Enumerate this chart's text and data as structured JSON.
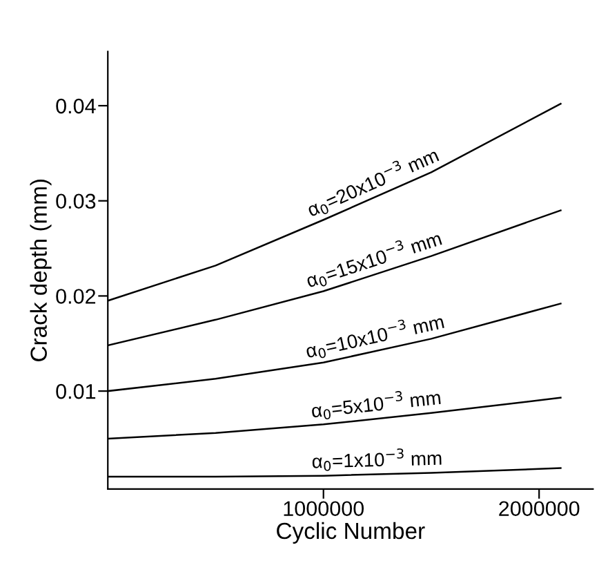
{
  "chart_data": {
    "type": "line",
    "xlabel": "Cyclic Number",
    "ylabel": "Crack depth (mm)",
    "x": [
      0,
      500000,
      1000000,
      1500000,
      2100000
    ],
    "series": [
      {
        "name": "α$_{0}$=20x10$^{−3}$ mm",
        "color": "#000000",
        "values": [
          0.0195,
          0.0232,
          0.028,
          0.033,
          0.0402
        ]
      },
      {
        "name": "α$_{0}$=15x10$^{−3}$ mm",
        "color": "#000000",
        "values": [
          0.0148,
          0.0175,
          0.0205,
          0.0242,
          0.029
        ]
      },
      {
        "name": "α$_{0}$=10x10$^{−3}$ mm",
        "color": "#000000",
        "values": [
          0.01,
          0.0113,
          0.013,
          0.0155,
          0.0192
        ]
      },
      {
        "name": "α$_{0}$=5x10$^{−3}$ mm",
        "color": "#000000",
        "values": [
          0.005,
          0.0056,
          0.0065,
          0.0077,
          0.0093
        ]
      },
      {
        "name": "α$_{0}$=1x10$^{−3}$ mm",
        "color": "#000000",
        "values": [
          0.001,
          0.001,
          0.0011,
          0.0014,
          0.0019
        ]
      }
    ],
    "xlim": [
      0,
      2250000
    ],
    "ylim": [
      -0.0003,
      0.0457
    ],
    "xticks": [
      1000000,
      2000000
    ],
    "yticks": [
      {
        "value": 0.01,
        "label": "0.01"
      },
      {
        "value": 0.02,
        "label": "0.02"
      },
      {
        "value": 0.03,
        "label": "0.03"
      },
      {
        "value": 0.04,
        "label": "0.04"
      }
    ],
    "grid": false,
    "legend": false,
    "marker": "none",
    "line_style": "solid"
  }
}
